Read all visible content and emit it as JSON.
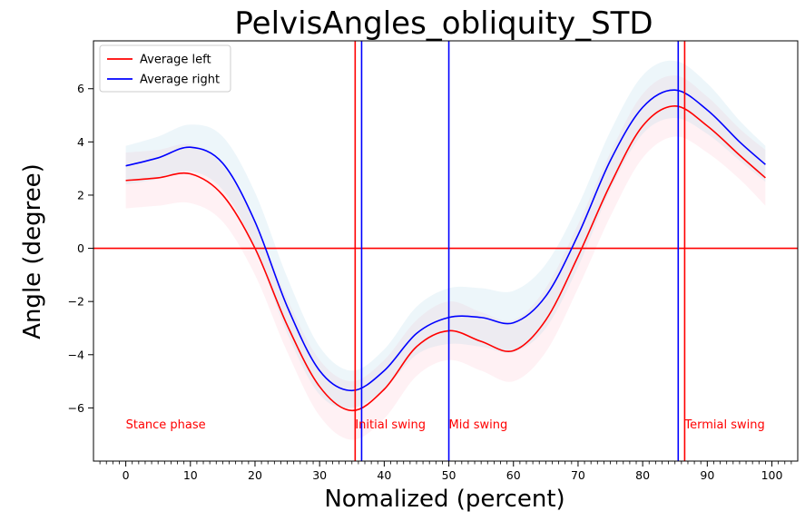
{
  "chart_data": {
    "type": "line",
    "title": "PelvisAngles_obliquity_STD",
    "xlabel": "Nomalized (percent)",
    "ylabel": "Angle (degree)",
    "xlim": [
      -5,
      104
    ],
    "ylim": [
      -8,
      7.8
    ],
    "xticks": [
      0,
      10,
      20,
      30,
      40,
      50,
      60,
      70,
      80,
      90,
      100
    ],
    "yticks": [
      -6,
      -4,
      -2,
      0,
      2,
      4,
      6
    ],
    "x": [
      0,
      5,
      10,
      15,
      20,
      25,
      30,
      35,
      40,
      45,
      50,
      55,
      60,
      65,
      70,
      75,
      80,
      85,
      90,
      95,
      99
    ],
    "series": [
      {
        "name": "Average left",
        "color": "#ff0000",
        "band_color": "#ffc0cb",
        "values": [
          2.55,
          2.65,
          2.8,
          2.0,
          0.0,
          -2.9,
          -5.2,
          -6.1,
          -5.3,
          -3.7,
          -3.1,
          -3.5,
          -3.85,
          -2.7,
          -0.3,
          2.4,
          4.6,
          5.35,
          4.6,
          3.5,
          2.65
        ],
        "lower": [
          1.5,
          1.6,
          1.7,
          1.0,
          -1.0,
          -3.9,
          -6.3,
          -7.2,
          -6.4,
          -4.8,
          -4.2,
          -4.6,
          -5.0,
          -3.9,
          -1.5,
          1.2,
          3.4,
          4.2,
          3.6,
          2.6,
          1.6
        ],
        "upper": [
          3.6,
          3.7,
          3.9,
          3.1,
          1.0,
          -1.9,
          -4.2,
          -5.0,
          -4.2,
          -2.7,
          -2.0,
          -2.4,
          -2.7,
          -1.5,
          0.9,
          3.6,
          5.8,
          6.5,
          5.7,
          4.5,
          3.7
        ]
      },
      {
        "name": "Average right",
        "color": "#0000ff",
        "band_color": "#add8e6",
        "values": [
          3.1,
          3.4,
          3.8,
          3.2,
          1.0,
          -2.2,
          -4.6,
          -5.35,
          -4.6,
          -3.2,
          -2.6,
          -2.6,
          -2.8,
          -1.8,
          0.5,
          3.3,
          5.3,
          5.95,
          5.2,
          4.0,
          3.15
        ],
        "lower": [
          2.4,
          2.6,
          2.9,
          2.2,
          0.0,
          -3.2,
          -5.5,
          -6.0,
          -5.3,
          -4.0,
          -3.6,
          -3.7,
          -3.9,
          -3.0,
          -0.7,
          2.2,
          4.3,
          4.9,
          4.3,
          3.3,
          2.5
        ],
        "upper": [
          3.85,
          4.2,
          4.65,
          4.2,
          2.1,
          -1.1,
          -3.7,
          -4.6,
          -3.8,
          -2.2,
          -1.5,
          -1.5,
          -1.6,
          -0.6,
          1.6,
          4.4,
          6.5,
          7.05,
          6.2,
          4.8,
          3.85
        ]
      }
    ],
    "hlines": [
      {
        "y": 0,
        "color": "#ff0000"
      }
    ],
    "vlines": [
      {
        "x": 35.5,
        "color": "#ff0000"
      },
      {
        "x": 36.5,
        "color": "#0000ff"
      },
      {
        "x": 50,
        "color": "#0000ff"
      },
      {
        "x": 85.5,
        "color": "#0000ff"
      },
      {
        "x": 86.5,
        "color": "#ff0000"
      }
    ],
    "annotations": [
      {
        "text": "Stance phase",
        "x": 0,
        "y": -6.6,
        "color": "#ff0000"
      },
      {
        "text": "Initial swing",
        "x": 35.5,
        "y": -6.6,
        "color": "#ff0000"
      },
      {
        "text": "Mid swing",
        "x": 50,
        "y": -6.6,
        "color": "#ff0000"
      },
      {
        "text": "Termial swing",
        "x": 86.5,
        "y": -6.6,
        "color": "#ff0000"
      }
    ],
    "legend": "upper-left",
    "grid": false
  }
}
